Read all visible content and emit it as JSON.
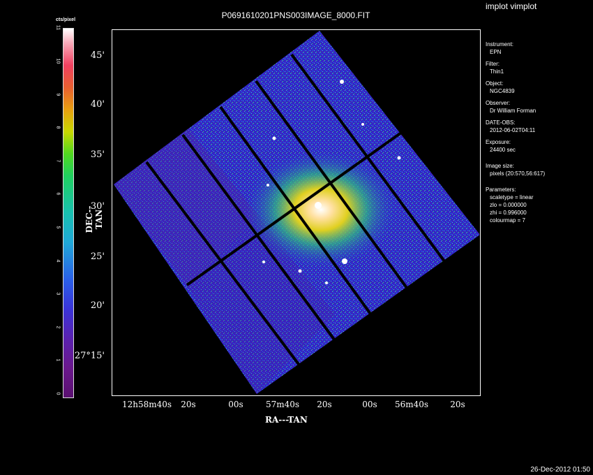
{
  "window": {
    "app_title": "implot vimplot"
  },
  "plot": {
    "title": "P0691610201PNS003IMAGE_8000.FIT",
    "colorbar": {
      "unit": "cts/pixel",
      "ticks": [
        "0",
        "1",
        "2",
        "3",
        "4",
        "5",
        "6",
        "7",
        "8",
        "9",
        "10",
        "11"
      ]
    },
    "y_axis": {
      "label": "DEC--TAN",
      "ticks": [
        "45'",
        "40'",
        "35'",
        "30'",
        "25'",
        "20'",
        "27°15'"
      ]
    },
    "x_axis": {
      "label": "RA---TAN",
      "ticks": [
        "12h58m40s",
        "20s",
        "00s",
        "57m40s",
        "20s",
        "00s",
        "56m40s",
        "20s"
      ]
    }
  },
  "info": {
    "instrument_label": "Instrument:",
    "instrument": "EPN",
    "filter_label": "Filter:",
    "filter": "Thin1",
    "object_label": "Object:",
    "object": "NGC4839",
    "observer_label": "Observer:",
    "observer": "Dr William Forman",
    "date_label": "DATE-OBS:",
    "date": "2012-06-02T04:11",
    "exposure_label": "Exposure:",
    "exposure": "24400 sec",
    "imgsize_label": "Image size:",
    "imgsize": "pixels (20:570,56:617)",
    "params_label": "Parameters:",
    "param1": "scaletype = linear",
    "param2": "zlo = 0.000000",
    "param3": "zhi = 0.996000",
    "param4": "colourmap = 7"
  },
  "footer": {
    "timestamp": "26-Dec-2012 01:50"
  }
}
